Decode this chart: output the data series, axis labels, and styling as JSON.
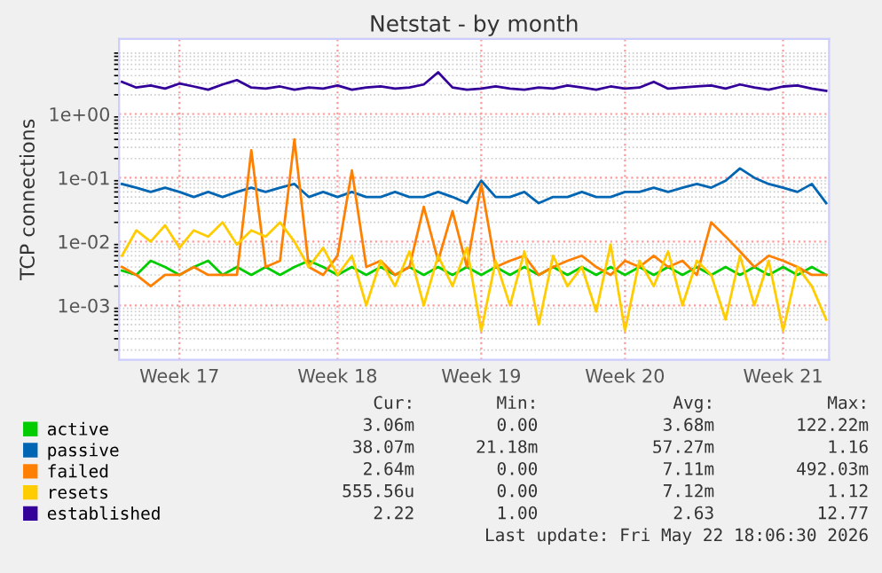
{
  "chart_data": {
    "type": "line",
    "title": "Netstat - by month",
    "ylabel": "TCP connections",
    "categories": [
      null,
      null,
      null,
      null,
      "Week 17",
      null,
      null,
      null,
      null,
      null,
      null,
      null,
      null,
      null,
      null,
      "Week 18",
      null,
      null,
      null,
      null,
      null,
      null,
      null,
      null,
      null,
      "Week 19",
      null,
      null,
      null,
      null,
      null,
      null,
      null,
      null,
      null,
      "Week 20",
      null,
      null,
      null,
      null,
      null,
      null,
      null,
      null,
      null,
      null,
      "Week 21",
      null,
      null,
      null
    ],
    "series": [
      {
        "name": "active",
        "color": "#00cc00",
        "values": [
          0.0035,
          0.003,
          0.005,
          0.004,
          0.003,
          0.004,
          0.005,
          0.003,
          0.004,
          0.003,
          0.004,
          0.003,
          0.004,
          0.005,
          0.004,
          0.003,
          0.004,
          0.003,
          0.004,
          0.003,
          0.004,
          0.003,
          0.004,
          0.003,
          0.004,
          0.003,
          0.004,
          0.003,
          0.004,
          0.003,
          0.004,
          0.003,
          0.004,
          0.003,
          0.004,
          0.003,
          0.004,
          0.003,
          0.004,
          0.003,
          0.004,
          0.003,
          0.004,
          0.003,
          0.004,
          0.003,
          0.004,
          0.003,
          0.004,
          0.003
        ]
      },
      {
        "name": "passive",
        "color": "#0066b3",
        "values": [
          0.08,
          0.07,
          0.06,
          0.07,
          0.06,
          0.05,
          0.06,
          0.05,
          0.06,
          0.07,
          0.06,
          0.07,
          0.08,
          0.05,
          0.06,
          0.05,
          0.06,
          0.05,
          0.05,
          0.06,
          0.05,
          0.05,
          0.06,
          0.05,
          0.04,
          0.09,
          0.05,
          0.05,
          0.06,
          0.04,
          0.05,
          0.05,
          0.06,
          0.05,
          0.05,
          0.06,
          0.06,
          0.07,
          0.06,
          0.07,
          0.08,
          0.07,
          0.09,
          0.14,
          0.1,
          0.08,
          0.07,
          0.06,
          0.08,
          0.04
        ]
      },
      {
        "name": "failed",
        "color": "#ff8000",
        "values": [
          0.004,
          0.003,
          0.002,
          0.003,
          0.003,
          0.004,
          0.003,
          0.003,
          0.003,
          0.27,
          0.004,
          0.005,
          0.4,
          0.004,
          0.003,
          0.006,
          0.13,
          0.004,
          0.005,
          0.003,
          0.004,
          0.035,
          0.005,
          0.03,
          0.004,
          0.08,
          0.004,
          0.005,
          0.006,
          0.003,
          0.004,
          0.005,
          0.006,
          0.004,
          0.003,
          0.005,
          0.004,
          0.006,
          0.004,
          0.005,
          0.003,
          0.02,
          0.012,
          0.007,
          0.004,
          0.006,
          0.005,
          0.004,
          0.003,
          0.003
        ]
      },
      {
        "name": "resets",
        "color": "#ffcc00",
        "values": [
          0.006,
          0.015,
          0.01,
          0.018,
          0.008,
          0.015,
          0.012,
          0.02,
          0.009,
          0.015,
          0.012,
          0.02,
          0.01,
          0.004,
          0.008,
          0.003,
          0.006,
          0.001,
          0.005,
          0.002,
          0.007,
          0.001,
          0.006,
          0.002,
          0.008,
          0.0004,
          0.005,
          0.001,
          0.007,
          0.0005,
          0.006,
          0.002,
          0.004,
          0.0008,
          0.009,
          0.0004,
          0.005,
          0.002,
          0.007,
          0.001,
          0.005,
          0.003,
          0.0006,
          0.006,
          0.001,
          0.005,
          0.0004,
          0.004,
          0.002,
          0.0006
        ]
      },
      {
        "name": "established",
        "color": "#330099",
        "values": [
          3.2,
          2.6,
          2.8,
          2.5,
          3.0,
          2.7,
          2.4,
          2.9,
          3.4,
          2.6,
          2.5,
          2.7,
          2.4,
          2.6,
          2.5,
          2.8,
          2.4,
          2.6,
          2.7,
          2.5,
          2.6,
          2.9,
          4.5,
          2.6,
          2.4,
          2.5,
          2.7,
          2.5,
          2.4,
          2.6,
          2.5,
          2.8,
          2.6,
          2.4,
          2.7,
          2.5,
          2.6,
          3.2,
          2.5,
          2.6,
          2.7,
          2.8,
          2.5,
          2.9,
          2.6,
          2.4,
          2.7,
          2.8,
          2.5,
          2.3
        ]
      }
    ],
    "log": "y",
    "ylim": [
      0.00014,
      15
    ],
    "yticks": [
      {
        "value": 0.001,
        "label": "1e-03"
      },
      {
        "value": 0.01,
        "label": "1e-02"
      },
      {
        "value": 0.1,
        "label": "1e-01"
      },
      {
        "value": 1,
        "label": "1e+00"
      }
    ],
    "grid": true,
    "legend": "bottom left",
    "marker": "none",
    "line_style": "solid",
    "annotations": [
      "Cur:",
      "Min:",
      "Avg:",
      "Max:",
      "3.06m",
      "0.00",
      "3.68m",
      "122.22m",
      "38.07m",
      "21.18m",
      "57.27m",
      "1.16",
      "2.64m",
      "0.00",
      "7.11m",
      "492.03m",
      "555.56u",
      "0.00",
      "7.12m",
      "1.12",
      "2.22",
      "1.00",
      "2.63",
      "12.77",
      "Last update: Fri May 22 18:06:30 2026"
    ]
  }
}
